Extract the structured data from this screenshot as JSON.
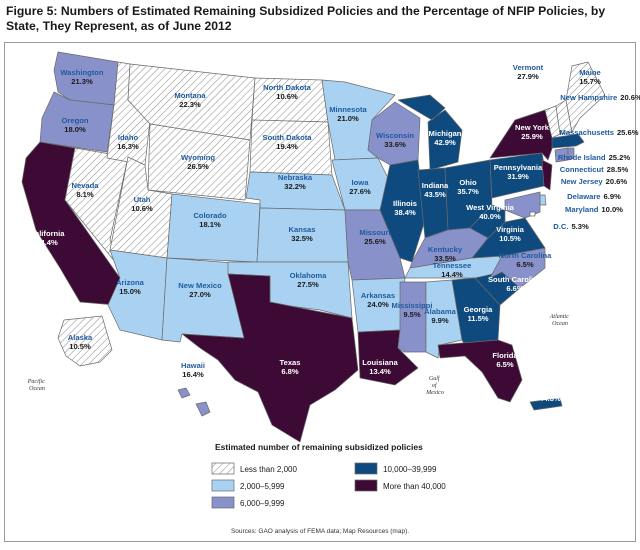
{
  "figure": {
    "title": "Figure 5: Numbers of Estimated Remaining Subsidized Policies and the Percentage of NFIP Policies, by State, They Represent, as of June 2012",
    "source": "Sources: GAO analysis of FEMA data; Map Resources (map)."
  },
  "colors": {
    "less_than_2000": "#ffffff",
    "c2000_5999": "#a9d2f2",
    "c6000_9999": "#8891c9",
    "c10000_39999": "#0e4a7e",
    "more_than_40000": "#3d0a35",
    "border": "#6a6a6a",
    "label_blue": "#1f5a9e"
  },
  "legend": {
    "title": "Estimated number of remaining subsidized policies",
    "items": [
      {
        "key": "less_than_2000",
        "label": "Less than 2,000"
      },
      {
        "key": "c2000_5999",
        "label": "2,000–5,999"
      },
      {
        "key": "c6000_9999",
        "label": "6,000–9,999"
      },
      {
        "key": "c10000_39999",
        "label": "10,000–39,999"
      },
      {
        "key": "more_than_40000",
        "label": "More than 40,000"
      }
    ]
  },
  "oceans": {
    "pacific": [
      "Pacific",
      "Ocean"
    ],
    "atlantic": [
      "Atlantic",
      "Ocean"
    ],
    "gulf": [
      "Gulf",
      "of",
      "Mexico"
    ]
  },
  "states": [
    {
      "name": "Washington",
      "value": "21.3%",
      "category": "c6000_9999"
    },
    {
      "name": "Oregon",
      "value": "18.0%",
      "category": "c6000_9999"
    },
    {
      "name": "California",
      "value": "24.4%",
      "category": "more_than_40000"
    },
    {
      "name": "Nevada",
      "value": "8.1%",
      "category": "less_than_2000"
    },
    {
      "name": "Idaho",
      "value": "16.3%",
      "category": "less_than_2000"
    },
    {
      "name": "Montana",
      "value": "22.3%",
      "category": "less_than_2000"
    },
    {
      "name": "Wyoming",
      "value": "26.5%",
      "category": "less_than_2000"
    },
    {
      "name": "Utah",
      "value": "10.6%",
      "category": "less_than_2000"
    },
    {
      "name": "Arizona",
      "value": "15.0%",
      "category": "c2000_5999"
    },
    {
      "name": "Colorado",
      "value": "18.1%",
      "category": "c2000_5999"
    },
    {
      "name": "New Mexico",
      "value": "27.0%",
      "category": "c2000_5999"
    },
    {
      "name": "North Dakota",
      "value": "10.6%",
      "category": "less_than_2000"
    },
    {
      "name": "South Dakota",
      "value": "19.4%",
      "category": "less_than_2000"
    },
    {
      "name": "Nebraska",
      "value": "32.2%",
      "category": "c2000_5999"
    },
    {
      "name": "Kansas",
      "value": "32.5%",
      "category": "c2000_5999"
    },
    {
      "name": "Oklahoma",
      "value": "27.5%",
      "category": "c2000_5999"
    },
    {
      "name": "Texas",
      "value": "6.8%",
      "category": "more_than_40000"
    },
    {
      "name": "Minnesota",
      "value": "21.0%",
      "category": "c2000_5999"
    },
    {
      "name": "Iowa",
      "value": "27.6%",
      "category": "c2000_5999"
    },
    {
      "name": "Missouri",
      "value": "25.6%",
      "category": "c6000_9999"
    },
    {
      "name": "Arkansas",
      "value": "24.0%",
      "category": "c2000_5999"
    },
    {
      "name": "Louisiana",
      "value": "13.4%",
      "category": "more_than_40000"
    },
    {
      "name": "Wisconsin",
      "value": "33.6%",
      "category": "c6000_9999"
    },
    {
      "name": "Illinois",
      "value": "38.4%",
      "category": "c10000_39999"
    },
    {
      "name": "Michigan",
      "value": "42.9%",
      "category": "c10000_39999"
    },
    {
      "name": "Indiana",
      "value": "43.5%",
      "category": "c10000_39999"
    },
    {
      "name": "Ohio",
      "value": "35.7%",
      "category": "c10000_39999"
    },
    {
      "name": "Kentucky",
      "value": "33.5%",
      "category": "c6000_9999"
    },
    {
      "name": "Tennessee",
      "value": "14.4%",
      "category": "c2000_5999"
    },
    {
      "name": "Mississippi",
      "value": "9.5%",
      "category": "c6000_9999"
    },
    {
      "name": "Alabama",
      "value": "9.9%",
      "category": "c2000_5999"
    },
    {
      "name": "Georgia",
      "value": "11.5%",
      "category": "c10000_39999"
    },
    {
      "name": "Florida",
      "value": "6.5%",
      "category": "more_than_40000"
    },
    {
      "name": "South Carolina",
      "value": "6.6%",
      "category": "c10000_39999"
    },
    {
      "name": "North Carolina",
      "value": "6.5%",
      "category": "c6000_9999"
    },
    {
      "name": "Virginia",
      "value": "10.5%",
      "category": "c10000_39999"
    },
    {
      "name": "West Virginia",
      "value": "40.0%",
      "category": "c10000_39999"
    },
    {
      "name": "Pennsylvania",
      "value": "31.9%",
      "category": "c10000_39999"
    },
    {
      "name": "New York",
      "value": "25.9%",
      "category": "more_than_40000"
    },
    {
      "name": "Vermont",
      "value": "27.9%",
      "category": "less_than_2000"
    },
    {
      "name": "Maine",
      "value": "15.7%",
      "category": "less_than_2000"
    },
    {
      "name": "New Hampshire",
      "value": "20.6%",
      "category": "less_than_2000"
    },
    {
      "name": "Massachusetts",
      "value": "25.6%",
      "category": "c10000_39999"
    },
    {
      "name": "Rhode Island",
      "value": "25.2%",
      "category": "c6000_9999"
    },
    {
      "name": "Connecticut",
      "value": "28.5%",
      "category": "c6000_9999"
    },
    {
      "name": "New Jersey",
      "value": "20.6%",
      "category": "more_than_40000"
    },
    {
      "name": "Delaware",
      "value": "6.9%",
      "category": "c2000_5999"
    },
    {
      "name": "Maryland",
      "value": "10.0%",
      "category": "c6000_9999"
    },
    {
      "name": "D.C.",
      "value": "5.3%",
      "category": "less_than_2000"
    },
    {
      "name": "Alaska",
      "value": "10.5%",
      "category": "less_than_2000"
    },
    {
      "name": "Hawaii",
      "value": "16.4%",
      "category": "c6000_9999"
    },
    {
      "name": "Puerto Rico",
      "value": "44.8%",
      "category": "c10000_39999"
    }
  ]
}
